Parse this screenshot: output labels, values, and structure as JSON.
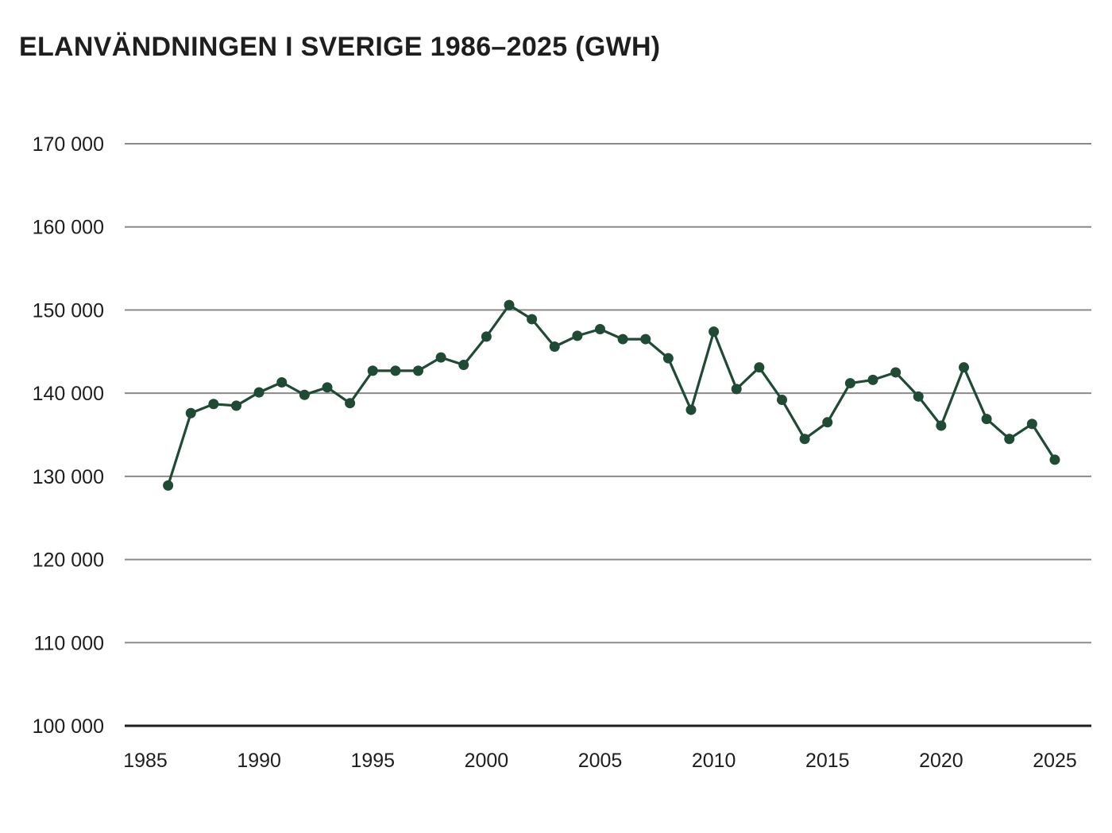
{
  "chart_data": {
    "type": "line",
    "title": "ELANVÄNDNINGEN I SVERIGE 1986–2025 (GWH)",
    "xlabel": "",
    "ylabel": "",
    "xlim": [
      1985,
      2025
    ],
    "ylim": [
      100000,
      170000
    ],
    "x_ticks": [
      1985,
      1990,
      1995,
      2000,
      2005,
      2010,
      2015,
      2020,
      2025
    ],
    "x_tick_labels": [
      "1985",
      "1990",
      "1995",
      "2000",
      "2005",
      "2010",
      "2015",
      "2020",
      "2025"
    ],
    "y_ticks": [
      100000,
      110000,
      120000,
      130000,
      140000,
      150000,
      160000,
      170000
    ],
    "y_tick_labels": [
      "100 000",
      "110 000",
      "120 000",
      "130 000",
      "140 000",
      "150 000",
      "160 000",
      "170 000"
    ],
    "grid": true,
    "legend": "none",
    "colors": {
      "series": "#1f4a33",
      "grid": "#8a8a8a",
      "baseline": "#1e1e1e",
      "text": "#1e1e1e"
    },
    "series": [
      {
        "x": [
          1986,
          1987,
          1988,
          1989,
          1990,
          1991,
          1992,
          1993,
          1994,
          1995,
          1996,
          1997,
          1998,
          1999,
          2000,
          2001,
          2002,
          2003,
          2004,
          2005,
          2006,
          2007,
          2008,
          2009,
          2010,
          2011,
          2012,
          2013,
          2014,
          2015,
          2016,
          2017,
          2018,
          2019,
          2020,
          2021,
          2022,
          2023,
          2024,
          2025
        ],
        "values": [
          128900,
          137600,
          138700,
          138500,
          140100,
          141300,
          139800,
          140700,
          138800,
          142700,
          142700,
          142700,
          144300,
          143400,
          146800,
          150600,
          148900,
          145600,
          146900,
          147700,
          146500,
          146500,
          144200,
          138000,
          147400,
          140500,
          143100,
          139200,
          134500,
          136500,
          141200,
          141600,
          142500,
          139600,
          136100,
          143100,
          136900,
          134500,
          136300,
          132000
        ]
      }
    ]
  }
}
